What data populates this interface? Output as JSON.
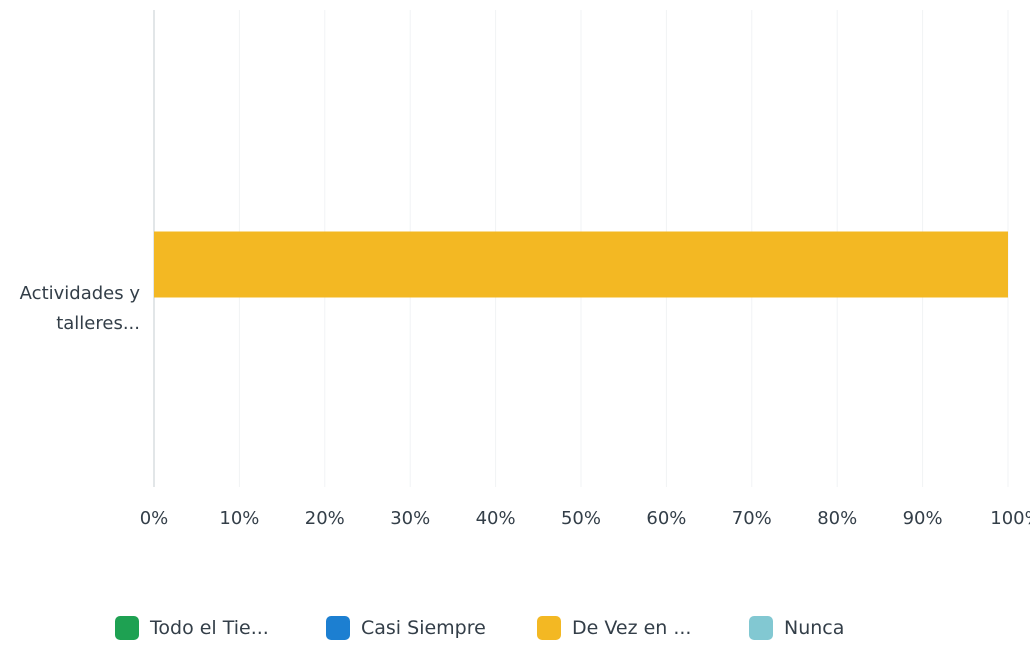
{
  "chart_data": {
    "type": "bar",
    "orientation": "horizontal",
    "stacked": true,
    "categories": [
      "Actividades y talleres..."
    ],
    "category_label_lines": [
      [
        "Actividades y",
        "talleres..."
      ]
    ],
    "series": [
      {
        "name": "Todo el Tie...",
        "values": [
          0
        ],
        "color": "#1ea152"
      },
      {
        "name": "Casi Siempre",
        "values": [
          0
        ],
        "color": "#1c7fd1"
      },
      {
        "name": "De Vez en ...",
        "values": [
          100
        ],
        "color": "#f3b823"
      },
      {
        "name": "Nunca",
        "values": [
          0
        ],
        "color": "#82c8d2"
      }
    ],
    "xlim": [
      0,
      100
    ],
    "xticks": [
      "0%",
      "10%",
      "20%",
      "30%",
      "40%",
      "50%",
      "60%",
      "70%",
      "80%",
      "90%",
      "100%"
    ],
    "grid": true,
    "legend_position": "bottom"
  }
}
